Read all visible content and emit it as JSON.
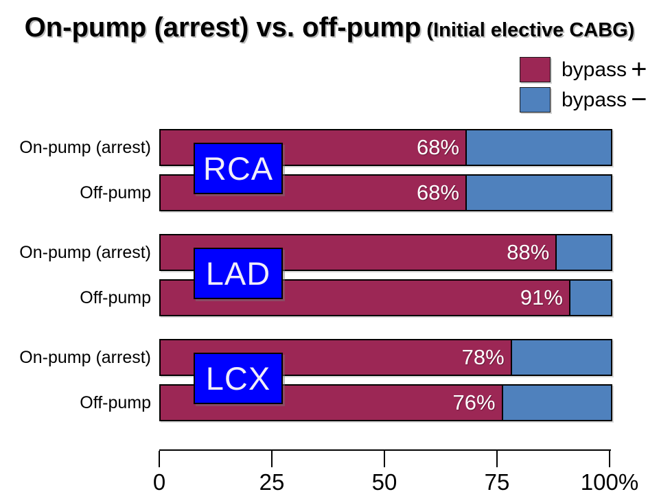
{
  "title": {
    "main": "On-pump (arrest) vs. off-pump",
    "sub": "(Initial elective CABG)"
  },
  "legend": {
    "items": [
      {
        "label": "bypass",
        "symbol": "+",
        "color": "#9C2755"
      },
      {
        "label": "bypass",
        "symbol": "−",
        "color": "#4F81BD"
      }
    ]
  },
  "colors": {
    "bypass_plus": "#9C2755",
    "bypass_minus": "#4F81BD",
    "vessel_box": "#0000FF",
    "axis": "#000000",
    "value_text": "#FFFFFF"
  },
  "chart_data": {
    "type": "bar",
    "orientation": "horizontal",
    "stacked": true,
    "title": "On-pump (arrest) vs. off-pump (Initial elective CABG)",
    "series": [
      "bypass +",
      "bypass −"
    ],
    "unit": "%",
    "xlim": [
      0,
      100
    ],
    "x_ticks": [
      "0",
      "25",
      "50",
      "75",
      "100%"
    ],
    "grid": false,
    "legend_position": "top-right",
    "groups": [
      {
        "vessel": "RCA",
        "rows": [
          {
            "label": "On-pump (arrest)",
            "bypass_plus": 68,
            "bypass_minus": 32,
            "value_label": "68%"
          },
          {
            "label": "Off-pump",
            "bypass_plus": 68,
            "bypass_minus": 32,
            "value_label": "68%"
          }
        ]
      },
      {
        "vessel": "LAD",
        "rows": [
          {
            "label": "On-pump (arrest)",
            "bypass_plus": 88,
            "bypass_minus": 12,
            "value_label": "88%"
          },
          {
            "label": "Off-pump",
            "bypass_plus": 91,
            "bypass_minus": 9,
            "value_label": "91%"
          }
        ]
      },
      {
        "vessel": "LCX",
        "rows": [
          {
            "label": "On-pump (arrest)",
            "bypass_plus": 78,
            "bypass_minus": 22,
            "value_label": "78%"
          },
          {
            "label": "Off-pump",
            "bypass_plus": 76,
            "bypass_minus": 24,
            "value_label": "76%"
          }
        ]
      }
    ]
  }
}
